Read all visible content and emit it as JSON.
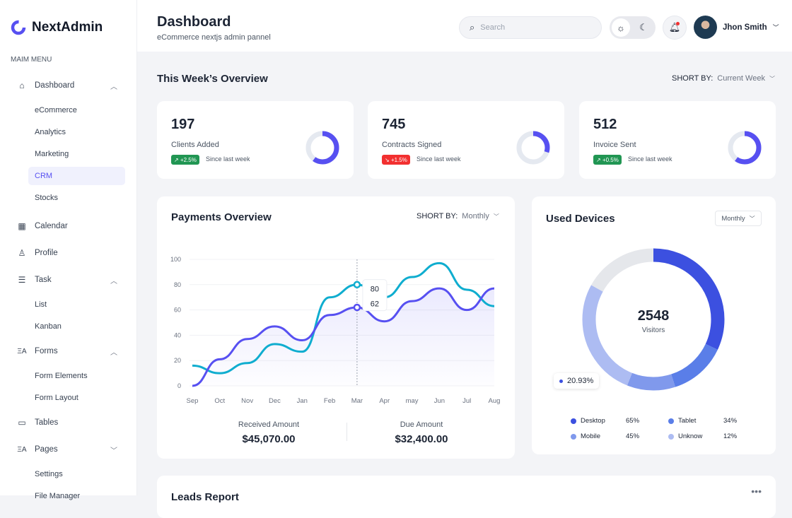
{
  "brand": {
    "name": "NextAdmin",
    "accent": "#5750f1"
  },
  "sidebar": {
    "menu_label": "MAIM MENU",
    "items": [
      {
        "label": "Dashboard",
        "icon": "home-icon",
        "expanded": true,
        "children": [
          "eCommerce",
          "Analytics",
          "Marketing",
          "CRM",
          "Stocks"
        ],
        "active_child": "CRM"
      },
      {
        "label": "Calendar",
        "icon": "calendar-icon"
      },
      {
        "label": "Profile",
        "icon": "user-icon"
      },
      {
        "label": "Task",
        "icon": "task-list-icon",
        "expanded": true,
        "children": [
          "List",
          "Kanban"
        ]
      },
      {
        "label": "Forms",
        "icon": "forms-icon",
        "expanded": true,
        "children": [
          "Form Elements",
          "Form Layout"
        ]
      },
      {
        "label": "Tables",
        "icon": "table-icon"
      },
      {
        "label": "Pages",
        "icon": "pages-icon",
        "expanded": false,
        "children": [
          "Settings",
          "File Manager"
        ]
      }
    ]
  },
  "header": {
    "title": "Dashboard",
    "subtitle": "eCommerce nextjs admin pannel",
    "search_placeholder": "Search",
    "user_name": "Jhon Smith"
  },
  "overview": {
    "title": "This Week’s Overview",
    "sort_label": "SHORT BY:",
    "sort_value": "Current Week",
    "stats": [
      {
        "value": "197",
        "label": "Clients Added",
        "change": "+2.5%",
        "trend": "up",
        "since": "Since last week",
        "fill": 0.6,
        "color": "#219653"
      },
      {
        "value": "745",
        "label": "Contracts Signed",
        "change": "+1.5%",
        "trend": "down",
        "since": "Since last week",
        "fill": 0.3,
        "color": "#f23030"
      },
      {
        "value": "512",
        "label": "Invoice Sent",
        "change": "+0.5%",
        "trend": "up",
        "since": "Since last week",
        "fill": 0.6,
        "color": "#219653"
      }
    ]
  },
  "payments": {
    "title": "Payments Overview",
    "sort_label": "SHORT BY:",
    "sort_value": "Monthly",
    "received_label": "Received Amount",
    "received_value": "$45,070.00",
    "due_label": "Due Amount",
    "due_value": "$32,400.00",
    "tooltip": {
      "month": "Mar",
      "values": [
        "80",
        "62"
      ]
    }
  },
  "devices": {
    "title": "Used Devices",
    "dropdown": "Monthly",
    "total": "2548",
    "total_label": "Visitors",
    "tooltip": "20.93%",
    "legend": [
      {
        "label": "Desktop",
        "value": "65%",
        "color": "#3c50e0"
      },
      {
        "label": "Tablet",
        "value": "34%",
        "color": "#5a7ee8"
      },
      {
        "label": "Mobile",
        "value": "45%",
        "color": "#8099ec"
      },
      {
        "label": "Unknow",
        "value": "12%",
        "color": "#adbcf2"
      }
    ]
  },
  "leads": {
    "title": "Leads Report"
  },
  "chart_data": {
    "type": "line",
    "categories": [
      "Sep",
      "Oct",
      "Nov",
      "Dec",
      "Jan",
      "Feb",
      "Mar",
      "Apr",
      "may",
      "Jun",
      "Jul",
      "Aug"
    ],
    "ylim": [
      0,
      100
    ],
    "yticks": [
      0,
      20,
      40,
      60,
      80,
      100
    ],
    "grid": true,
    "series": [
      {
        "color": "#0fadcf",
        "values": [
          16,
          10,
          18,
          33,
          27,
          70,
          80,
          70,
          86,
          97,
          76,
          63
        ]
      },
      {
        "color": "#5750f1",
        "values": [
          0,
          21,
          37,
          47,
          36,
          56,
          62,
          51,
          67,
          77,
          60,
          77
        ]
      }
    ]
  }
}
